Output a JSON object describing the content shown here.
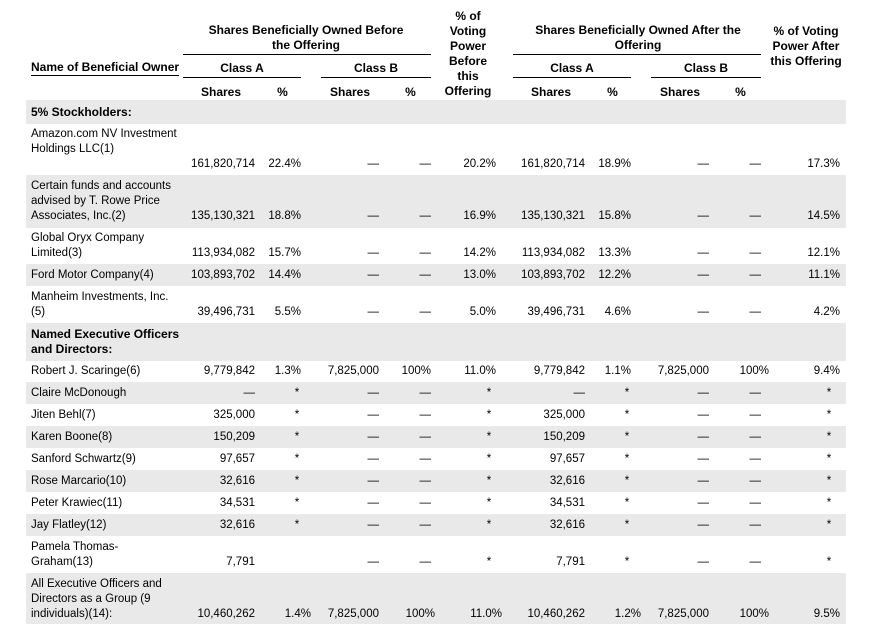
{
  "header": {
    "before_group": "Shares Beneficially Owned Before the Offering",
    "before_voting": "% of Voting Power Before this Offering",
    "after_group": "Shares Beneficially Owned After the Offering",
    "after_voting": "% of Voting Power After this Offering",
    "name_col": "Name of Beneficial Owner",
    "class_a": "Class A",
    "class_b": "Class B",
    "shares": "Shares",
    "pct": "%"
  },
  "sections": {
    "stockholders": "5% Stockholders:",
    "officers": "Named Executive Officers and Directors:"
  },
  "rows": [
    {
      "name": "Amazon.com NV Investment Holdings LLC(1)",
      "a_sh": "161,820,714",
      "a_pct": "22.4%",
      "b_sh": "—",
      "b_pct": "—",
      "vp_before": "20.2%",
      "a_sh2": "161,820,714",
      "a_pct2": "18.9%",
      "b_sh2": "—",
      "b_pct2": "—",
      "vp_after": "17.3%"
    },
    {
      "name": "Certain funds and accounts advised by T. Rowe Price Associates, Inc.(2)",
      "a_sh": "135,130,321",
      "a_pct": "18.8%",
      "b_sh": "—",
      "b_pct": "—",
      "vp_before": "16.9%",
      "a_sh2": "135,130,321",
      "a_pct2": "15.8%",
      "b_sh2": "—",
      "b_pct2": "—",
      "vp_after": "14.5%"
    },
    {
      "name": "Global Oryx Company Limited(3)",
      "a_sh": "113,934,082",
      "a_pct": "15.7%",
      "b_sh": "—",
      "b_pct": "—",
      "vp_before": "14.2%",
      "a_sh2": "113,934,082",
      "a_pct2": "13.3%",
      "b_sh2": "—",
      "b_pct2": "—",
      "vp_after": "12.1%"
    },
    {
      "name": "Ford Motor Company(4)",
      "a_sh": "103,893,702",
      "a_pct": "14.4%",
      "b_sh": "—",
      "b_pct": "—",
      "vp_before": "13.0%",
      "a_sh2": "103,893,702",
      "a_pct2": "12.2%",
      "b_sh2": "—",
      "b_pct2": "—",
      "vp_after": "11.1%"
    },
    {
      "name": "Manheim Investments, Inc. (5)",
      "a_sh": "39,496,731",
      "a_pct": "5.5%",
      "b_sh": "—",
      "b_pct": "—",
      "vp_before": "5.0%",
      "a_sh2": "39,496,731",
      "a_pct2": "4.6%",
      "b_sh2": "—",
      "b_pct2": "—",
      "vp_after": "4.2%"
    },
    {
      "name": "Robert J. Scaringe(6)",
      "a_sh": "9,779,842",
      "a_pct": "1.3%",
      "b_sh": "7,825,000",
      "b_pct": "100%",
      "vp_before": "11.0%",
      "a_sh2": "9,779,842",
      "a_pct2": "1.1%",
      "b_sh2": "7,825,000",
      "b_pct2": "100%",
      "vp_after": "9.4%"
    },
    {
      "name": "Claire McDonough",
      "a_sh": "—",
      "a_pct": "*",
      "b_sh": "—",
      "b_pct": "—",
      "vp_before": "*",
      "a_sh2": "—",
      "a_pct2": "*",
      "b_sh2": "—",
      "b_pct2": "—",
      "vp_after": "*"
    },
    {
      "name": "Jiten Behl(7)",
      "a_sh": "325,000",
      "a_pct": "*",
      "b_sh": "—",
      "b_pct": "—",
      "vp_before": "*",
      "a_sh2": "325,000",
      "a_pct2": "*",
      "b_sh2": "—",
      "b_pct2": "—",
      "vp_after": "*"
    },
    {
      "name": "Karen Boone(8)",
      "a_sh": "150,209",
      "a_pct": "*",
      "b_sh": "—",
      "b_pct": "—",
      "vp_before": "*",
      "a_sh2": "150,209",
      "a_pct2": "*",
      "b_sh2": "—",
      "b_pct2": "—",
      "vp_after": "*"
    },
    {
      "name": "Sanford Schwartz(9)",
      "a_sh": "97,657",
      "a_pct": "*",
      "b_sh": "—",
      "b_pct": "—",
      "vp_before": "*",
      "a_sh2": "97,657",
      "a_pct2": "*",
      "b_sh2": "—",
      "b_pct2": "—",
      "vp_after": "*"
    },
    {
      "name": "Rose Marcario(10)",
      "a_sh": "32,616",
      "a_pct": "*",
      "b_sh": "—",
      "b_pct": "—",
      "vp_before": "*",
      "a_sh2": "32,616",
      "a_pct2": "*",
      "b_sh2": "—",
      "b_pct2": "—",
      "vp_after": "*"
    },
    {
      "name": "Peter Krawiec(11)",
      "a_sh": "34,531",
      "a_pct": "*",
      "b_sh": "—",
      "b_pct": "—",
      "vp_before": "*",
      "a_sh2": "34,531",
      "a_pct2": "*",
      "b_sh2": "—",
      "b_pct2": "—",
      "vp_after": "*"
    },
    {
      "name": "Jay Flatley(12)",
      "a_sh": "32,616",
      "a_pct": "*",
      "b_sh": "—",
      "b_pct": "—",
      "vp_before": "*",
      "a_sh2": "32,616",
      "a_pct2": "*",
      "b_sh2": "—",
      "b_pct2": "—",
      "vp_after": "*"
    },
    {
      "name": "Pamela Thomas-Graham(13)",
      "a_sh": "7,791",
      "a_pct": "",
      "b_sh": "—",
      "b_pct": "—",
      "vp_before": "*",
      "a_sh2": "7,791",
      "a_pct2": "*",
      "b_sh2": "—",
      "b_pct2": "—",
      "vp_after": "*"
    },
    {
      "name": "All Executive Officers and Directors as a Group (9 individuals)(14):",
      "a_sh": "10,460,262",
      "a_pct": "1.4%",
      "b_sh": "7,825,000",
      "b_pct": "100%",
      "vp_before": "11.0%",
      "a_sh2": "10,460,262",
      "a_pct2": "1.2%",
      "b_sh2": "7,825,000",
      "b_pct2": "100%",
      "vp_after": "9.5%"
    }
  ]
}
